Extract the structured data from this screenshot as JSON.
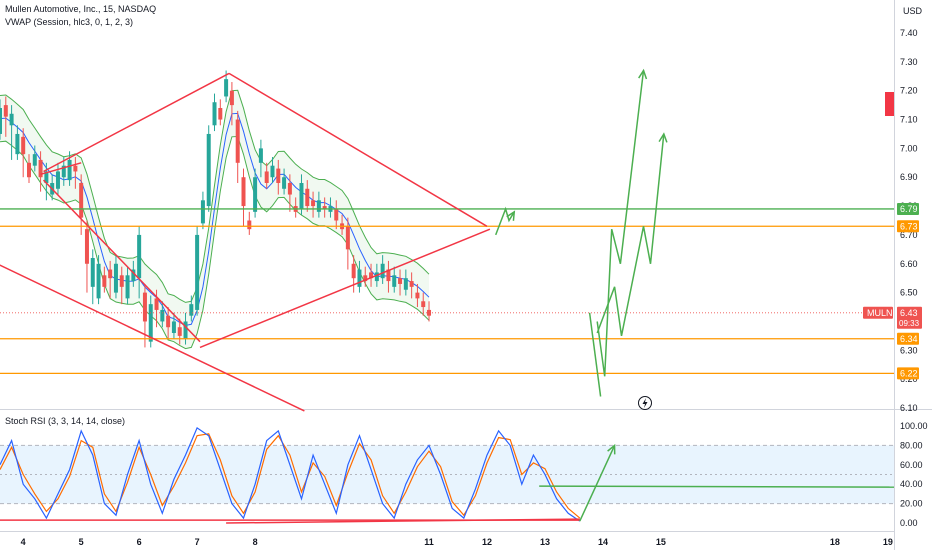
{
  "symbol_title": "Mullen Automotive, Inc., 15, NASDAQ",
  "vwap_label": "VWAP (Session, hlc3, 0, 1, 2, 3)",
  "rsi_label": "Stoch RSI (3, 3, 14, 14, close)",
  "currency": "USD",
  "colors": {
    "up": "#26a69a",
    "down": "#ef5350",
    "vwap": "#2962ff",
    "band": "#4caf50",
    "trend": "#f23645",
    "forecast": "#4caf50",
    "support": "#ff9800",
    "resistance": "#4caf50",
    "rsi_k": "#2962ff",
    "rsi_d": "#ff6d00"
  },
  "chart_data": [
    {
      "type": "candlestick",
      "price_axis": {
        "range": [
          6.1,
          7.45
        ],
        "ticks": [
          "7.40",
          "7.30",
          "7.20",
          "7.10",
          "7.00",
          "6.90",
          "6.80",
          "6.70",
          "6.60",
          "6.50",
          "6.40",
          "6.30",
          "6.20",
          "6.10"
        ]
      },
      "time_axis": {
        "range": [
          3.6,
          19.02
        ],
        "ticks": [
          {
            "x": 4,
            "label": "4"
          },
          {
            "x": 5,
            "label": "5"
          },
          {
            "x": 6,
            "label": "6"
          },
          {
            "x": 7,
            "label": "7"
          },
          {
            "x": 8,
            "label": "8"
          },
          {
            "x": 11,
            "label": "11"
          },
          {
            "x": 12,
            "label": "12"
          },
          {
            "x": 13,
            "label": "13"
          },
          {
            "x": 14,
            "label": "14"
          },
          {
            "x": 15,
            "label": "15"
          },
          {
            "x": 18,
            "label": "18"
          },
          {
            "x": 19,
            "label": "19"
          }
        ]
      },
      "badges": [
        {
          "label": "6.79",
          "price": 6.79,
          "color": "#4caf50"
        },
        {
          "label": "6.73",
          "price": 6.73,
          "color": "#ff9800"
        },
        {
          "label": "6.34",
          "price": 6.34,
          "color": "#ff9800"
        },
        {
          "label": "6.22",
          "price": 6.22,
          "color": "#ff9800"
        }
      ],
      "last_price": {
        "symbol": "MULN",
        "price": "6.43",
        "countdown": "09:33",
        "value": 6.43
      },
      "horizontal_levels": [
        {
          "price": 6.79,
          "color": "#4caf50"
        },
        {
          "price": 6.73,
          "color": "#ff9800"
        },
        {
          "price": 6.34,
          "color": "#ff9800"
        },
        {
          "price": 6.22,
          "color": "#ff9800"
        }
      ],
      "trend_lines": [
        {
          "points": [
            [
              3.55,
              6.6
            ],
            [
              8.85,
              6.09
            ]
          ]
        },
        {
          "points": [
            [
              4.3,
              6.91
            ],
            [
              5.0,
              6.95
            ]
          ]
        },
        {
          "points": [
            [
              4.35,
              6.89
            ],
            [
              7.05,
              6.33
            ]
          ]
        },
        {
          "points": [
            [
              4.35,
              6.92
            ],
            [
              7.55,
              7.26
            ]
          ]
        },
        {
          "points": [
            [
              7.55,
              7.26
            ],
            [
              12.0,
              6.73
            ]
          ]
        },
        {
          "points": [
            [
              7.05,
              6.31
            ],
            [
              12.05,
              6.72
            ]
          ]
        }
      ],
      "forecast_path_1": [
        [
          12.15,
          6.7
        ],
        [
          12.32,
          6.79
        ],
        [
          12.38,
          6.75
        ],
        [
          12.47,
          6.78
        ]
      ],
      "forecast_path_2": [
        [
          13.9,
          6.4
        ],
        [
          14.03,
          6.21
        ],
        [
          14.15,
          6.72
        ],
        [
          14.3,
          6.6
        ],
        [
          14.7,
          7.27
        ]
      ],
      "forecast_path_3": [
        [
          13.9,
          6.36
        ],
        [
          14.2,
          6.52
        ],
        [
          14.32,
          6.35
        ],
        [
          14.7,
          6.73
        ],
        [
          14.82,
          6.6
        ],
        [
          15.05,
          7.05
        ]
      ],
      "forecast_drop": [
        [
          13.77,
          6.43
        ],
        [
          13.96,
          6.14
        ]
      ],
      "candles_hlc": [
        [
          3.6,
          7.05,
          7.14,
          7.12
        ],
        [
          3.7,
          7.15,
          7.11,
          7.06
        ],
        [
          3.8,
          7.08,
          7.12,
          6.98
        ],
        [
          3.9,
          6.98,
          7.05,
          7.04
        ],
        [
          4.0,
          7.04,
          6.98,
          6.92
        ],
        [
          4.1,
          6.95,
          6.9,
          6.94
        ],
        [
          4.2,
          6.94,
          6.98,
          6.96
        ],
        [
          4.3,
          6.96,
          6.9,
          6.87
        ],
        [
          4.4,
          6.88,
          6.92,
          6.84
        ],
        [
          4.5,
          6.84,
          6.88,
          6.86
        ],
        [
          4.6,
          6.86,
          6.92,
          6.9
        ],
        [
          4.7,
          6.9,
          6.94,
          6.89
        ],
        [
          4.8,
          6.89,
          6.96,
          6.94
        ],
        [
          4.9,
          6.94,
          6.92,
          6.88
        ],
        [
          5.0,
          6.88,
          6.76,
          6.72
        ],
        [
          5.1,
          6.72,
          6.6,
          6.52
        ],
        [
          5.2,
          6.52,
          6.62,
          6.48
        ],
        [
          5.3,
          6.48,
          6.6,
          6.56
        ],
        [
          5.4,
          6.56,
          6.52,
          6.58
        ],
        [
          5.5,
          6.58,
          6.55,
          6.5
        ],
        [
          5.6,
          6.5,
          6.6,
          6.56
        ],
        [
          5.7,
          6.56,
          6.52,
          6.48
        ],
        [
          5.8,
          6.48,
          6.56,
          6.54
        ],
        [
          5.9,
          6.54,
          6.58,
          6.55
        ],
        [
          6.0,
          6.55,
          6.7,
          6.5
        ],
        [
          6.1,
          6.5,
          6.4,
          6.33
        ],
        [
          6.2,
          6.33,
          6.46,
          6.48
        ],
        [
          6.3,
          6.48,
          6.44,
          6.4
        ],
        [
          6.4,
          6.4,
          6.44,
          6.42
        ],
        [
          6.5,
          6.42,
          6.38,
          6.36
        ],
        [
          6.6,
          6.36,
          6.4,
          6.38
        ],
        [
          6.7,
          6.38,
          6.35,
          6.34
        ],
        [
          6.8,
          6.34,
          6.4,
          6.42
        ],
        [
          6.9,
          6.42,
          6.46,
          6.44
        ],
        [
          7.0,
          6.44,
          6.7,
          6.74
        ],
        [
          7.1,
          6.74,
          6.82,
          6.8
        ],
        [
          7.2,
          6.8,
          7.05,
          7.08
        ],
        [
          7.3,
          7.08,
          7.16,
          7.14
        ],
        [
          7.4,
          7.14,
          7.1,
          7.18
        ],
        [
          7.5,
          7.18,
          7.24,
          7.2
        ],
        [
          7.6,
          7.2,
          7.15,
          7.1
        ],
        [
          7.7,
          7.1,
          6.95,
          6.9
        ],
        [
          7.8,
          6.9,
          6.8,
          6.75
        ],
        [
          7.9,
          6.75,
          6.72,
          6.78
        ],
        [
          8.0,
          6.78,
          6.9,
          6.95
        ],
        [
          8.1,
          6.95,
          7.0,
          6.92
        ],
        [
          8.2,
          6.92,
          6.88,
          6.9
        ],
        [
          8.3,
          6.9,
          6.94,
          6.93
        ],
        [
          8.4,
          6.93,
          6.88,
          6.86
        ],
        [
          8.5,
          6.86,
          6.9,
          6.88
        ],
        [
          8.6,
          6.88,
          6.84,
          6.8
        ],
        [
          8.7,
          6.8,
          6.78,
          6.79
        ],
        [
          8.8,
          6.79,
          6.88,
          6.86
        ],
        [
          8.9,
          6.86,
          6.8,
          6.82
        ],
        [
          9.0,
          6.82,
          6.8,
          6.78
        ],
        [
          9.1,
          6.78,
          6.82,
          6.8
        ],
        [
          9.2,
          6.8,
          6.79,
          6.78
        ],
        [
          9.3,
          6.78,
          6.8,
          6.79
        ],
        [
          9.4,
          6.79,
          6.75,
          6.74
        ],
        [
          9.5,
          6.74,
          6.72,
          6.73
        ],
        [
          9.6,
          6.73,
          6.65,
          6.6
        ],
        [
          9.7,
          6.6,
          6.55,
          6.52
        ],
        [
          9.8,
          6.52,
          6.58,
          6.56
        ],
        [
          9.9,
          6.56,
          6.54,
          6.57
        ],
        [
          10.0,
          6.57,
          6.55,
          6.54
        ],
        [
          10.1,
          6.54,
          6.57,
          6.55
        ],
        [
          10.2,
          6.55,
          6.6,
          6.58
        ],
        [
          10.3,
          6.58,
          6.54,
          6.52
        ],
        [
          10.4,
          6.52,
          6.56,
          6.55
        ],
        [
          10.5,
          6.55,
          6.53,
          6.51
        ],
        [
          10.6,
          6.51,
          6.55,
          6.54
        ],
        [
          10.7,
          6.54,
          6.52,
          6.5
        ],
        [
          10.8,
          6.5,
          6.48,
          6.47
        ],
        [
          10.9,
          6.47,
          6.45,
          6.44
        ],
        [
          11.0,
          6.44,
          6.42,
          6.43
        ]
      ]
    },
    {
      "type": "line",
      "title": "Stoch RSI (3, 3, 14, 14, close)",
      "y_axis": {
        "range": [
          -5,
          107
        ],
        "ticks": [
          "100.00",
          "80.00",
          "60.00",
          "40.00",
          "20.00",
          "0.00"
        ]
      },
      "band": [
        20,
        80
      ],
      "series": [
        {
          "values": [
            [
              3.6,
              60
            ],
            [
              3.8,
              85
            ],
            [
              4.0,
              40
            ],
            [
              4.2,
              25
            ],
            [
              4.4,
              5
            ],
            [
              4.6,
              30
            ],
            [
              4.8,
              55
            ],
            [
              5.0,
              95
            ],
            [
              5.2,
              70
            ],
            [
              5.4,
              20
            ],
            [
              5.6,
              8
            ],
            [
              5.8,
              50
            ],
            [
              6.0,
              85
            ],
            [
              6.2,
              40
            ],
            [
              6.4,
              10
            ],
            [
              6.6,
              45
            ],
            [
              6.8,
              70
            ],
            [
              7.0,
              98
            ],
            [
              7.2,
              90
            ],
            [
              7.4,
              55
            ],
            [
              7.6,
              20
            ],
            [
              7.8,
              5
            ],
            [
              8.0,
              40
            ],
            [
              8.2,
              85
            ],
            [
              8.4,
              95
            ],
            [
              8.6,
              60
            ],
            [
              8.8,
              25
            ],
            [
              9.0,
              70
            ],
            [
              9.2,
              40
            ],
            [
              9.4,
              10
            ],
            [
              9.6,
              60
            ],
            [
              9.8,
              90
            ],
            [
              10.0,
              55
            ],
            [
              10.2,
              20
            ],
            [
              10.4,
              5
            ],
            [
              10.6,
              40
            ],
            [
              10.8,
              65
            ],
            [
              11.0,
              80
            ],
            [
              11.2,
              50
            ],
            [
              11.4,
              15
            ],
            [
              11.6,
              5
            ],
            [
              11.8,
              35
            ],
            [
              12.0,
              70
            ],
            [
              12.2,
              95
            ],
            [
              12.4,
              80
            ],
            [
              12.6,
              40
            ],
            [
              12.8,
              70
            ],
            [
              13.0,
              50
            ],
            [
              13.2,
              25
            ],
            [
              13.4,
              10
            ],
            [
              13.6,
              2
            ]
          ]
        },
        {
          "values": [
            [
              3.6,
              55
            ],
            [
              3.8,
              78
            ],
            [
              4.0,
              50
            ],
            [
              4.2,
              30
            ],
            [
              4.4,
              12
            ],
            [
              4.6,
              25
            ],
            [
              4.8,
              48
            ],
            [
              5.0,
              85
            ],
            [
              5.2,
              78
            ],
            [
              5.4,
              30
            ],
            [
              5.6,
              12
            ],
            [
              5.8,
              42
            ],
            [
              6.0,
              78
            ],
            [
              6.2,
              50
            ],
            [
              6.4,
              18
            ],
            [
              6.6,
              38
            ],
            [
              6.8,
              62
            ],
            [
              7.0,
              90
            ],
            [
              7.2,
              92
            ],
            [
              7.4,
              65
            ],
            [
              7.6,
              28
            ],
            [
              7.8,
              10
            ],
            [
              8.0,
              32
            ],
            [
              8.2,
              76
            ],
            [
              8.4,
              90
            ],
            [
              8.6,
              70
            ],
            [
              8.8,
              32
            ],
            [
              9.0,
              62
            ],
            [
              9.2,
              48
            ],
            [
              9.4,
              18
            ],
            [
              9.6,
              52
            ],
            [
              9.8,
              82
            ],
            [
              10.0,
              65
            ],
            [
              10.2,
              28
            ],
            [
              10.4,
              10
            ],
            [
              10.6,
              32
            ],
            [
              10.8,
              58
            ],
            [
              11.0,
              74
            ],
            [
              11.2,
              58
            ],
            [
              11.4,
              22
            ],
            [
              11.6,
              8
            ],
            [
              11.8,
              28
            ],
            [
              12.0,
              62
            ],
            [
              12.2,
              88
            ],
            [
              12.4,
              86
            ],
            [
              12.6,
              50
            ],
            [
              12.8,
              62
            ],
            [
              13.0,
              56
            ],
            [
              13.2,
              32
            ],
            [
              13.4,
              15
            ],
            [
              13.6,
              5
            ]
          ]
        }
      ],
      "trend_lines": [
        {
          "points": [
            [
              3.6,
              3
            ],
            [
              13.6,
              3
            ]
          ]
        },
        {
          "points": [
            [
              7.5,
              0
            ],
            [
              13.6,
              4
            ]
          ]
        },
        {
          "points": [
            [
              12.9,
              38
            ],
            [
              19.02,
              37
            ]
          ]
        }
      ],
      "forecast_arrow": [
        [
          13.6,
          2
        ],
        [
          14.2,
          80
        ]
      ]
    }
  ]
}
